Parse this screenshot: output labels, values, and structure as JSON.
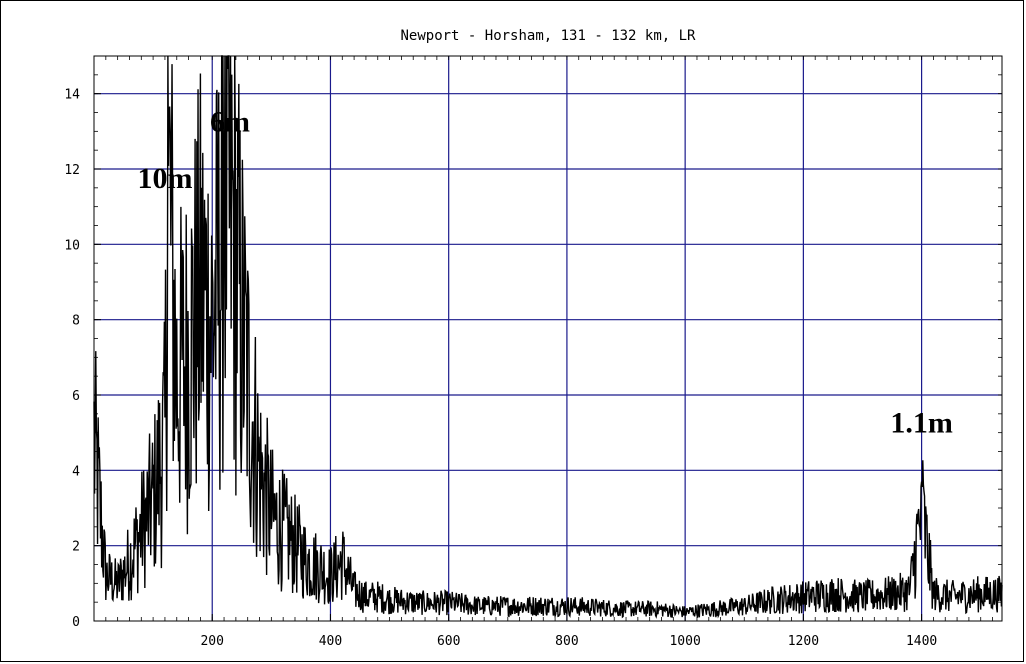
{
  "chart_data": {
    "type": "line",
    "title": "Newport - Horsham, 131 - 132 km, LR",
    "xlabel": "",
    "ylabel": "",
    "xlim": [
      0,
      1536
    ],
    "ylim": [
      0,
      15
    ],
    "x_ticks": [
      200,
      400,
      600,
      800,
      1000,
      1200,
      1400
    ],
    "y_ticks": [
      0,
      2,
      4,
      6,
      8,
      10,
      12,
      14
    ],
    "x_tick_labels": [
      "200",
      "400",
      "600",
      "800",
      "1000",
      "1200",
      "1400"
    ],
    "y_tick_labels": [
      "0",
      "2",
      "4",
      "6",
      "8",
      "10",
      "12",
      "14"
    ],
    "grid": true,
    "grid_color": "#1a1a8c",
    "line_color": "#000000",
    "annotations": [
      {
        "text": "10m",
        "x": 120,
        "y": 11.5
      },
      {
        "text": "6m",
        "x": 230,
        "y": 13.0
      },
      {
        "text": "1.1m",
        "x": 1400,
        "y": 5.0
      }
    ],
    "series": [
      {
        "x": [
          0,
          20,
          40,
          60,
          80,
          100,
          120,
          125,
          140,
          160,
          180,
          200,
          215,
          220,
          240,
          260,
          280,
          300,
          320,
          340,
          360,
          380,
          400,
          420,
          440,
          460,
          480,
          500,
          550,
          600,
          650,
          700,
          750,
          800,
          850,
          900,
          950,
          1000,
          1050,
          1100,
          1150,
          1200,
          1250,
          1300,
          1350,
          1380,
          1400,
          1420,
          1450,
          1500,
          1536
        ],
        "y": [
          6.0,
          1.5,
          1.2,
          2.0,
          3.0,
          4.0,
          6.0,
          15.0,
          8.0,
          9.0,
          11.0,
          10.0,
          12.0,
          15.0,
          12.0,
          8.0,
          5.0,
          3.5,
          3.0,
          2.5,
          2.0,
          1.8,
          1.5,
          2.0,
          1.0,
          0.8,
          0.8,
          0.7,
          0.6,
          0.6,
          0.5,
          0.5,
          0.5,
          0.5,
          0.45,
          0.4,
          0.4,
          0.3,
          0.4,
          0.5,
          0.7,
          0.8,
          0.9,
          0.8,
          0.9,
          1.0,
          3.7,
          0.9,
          0.8,
          0.9,
          0.9
        ]
      }
    ]
  }
}
